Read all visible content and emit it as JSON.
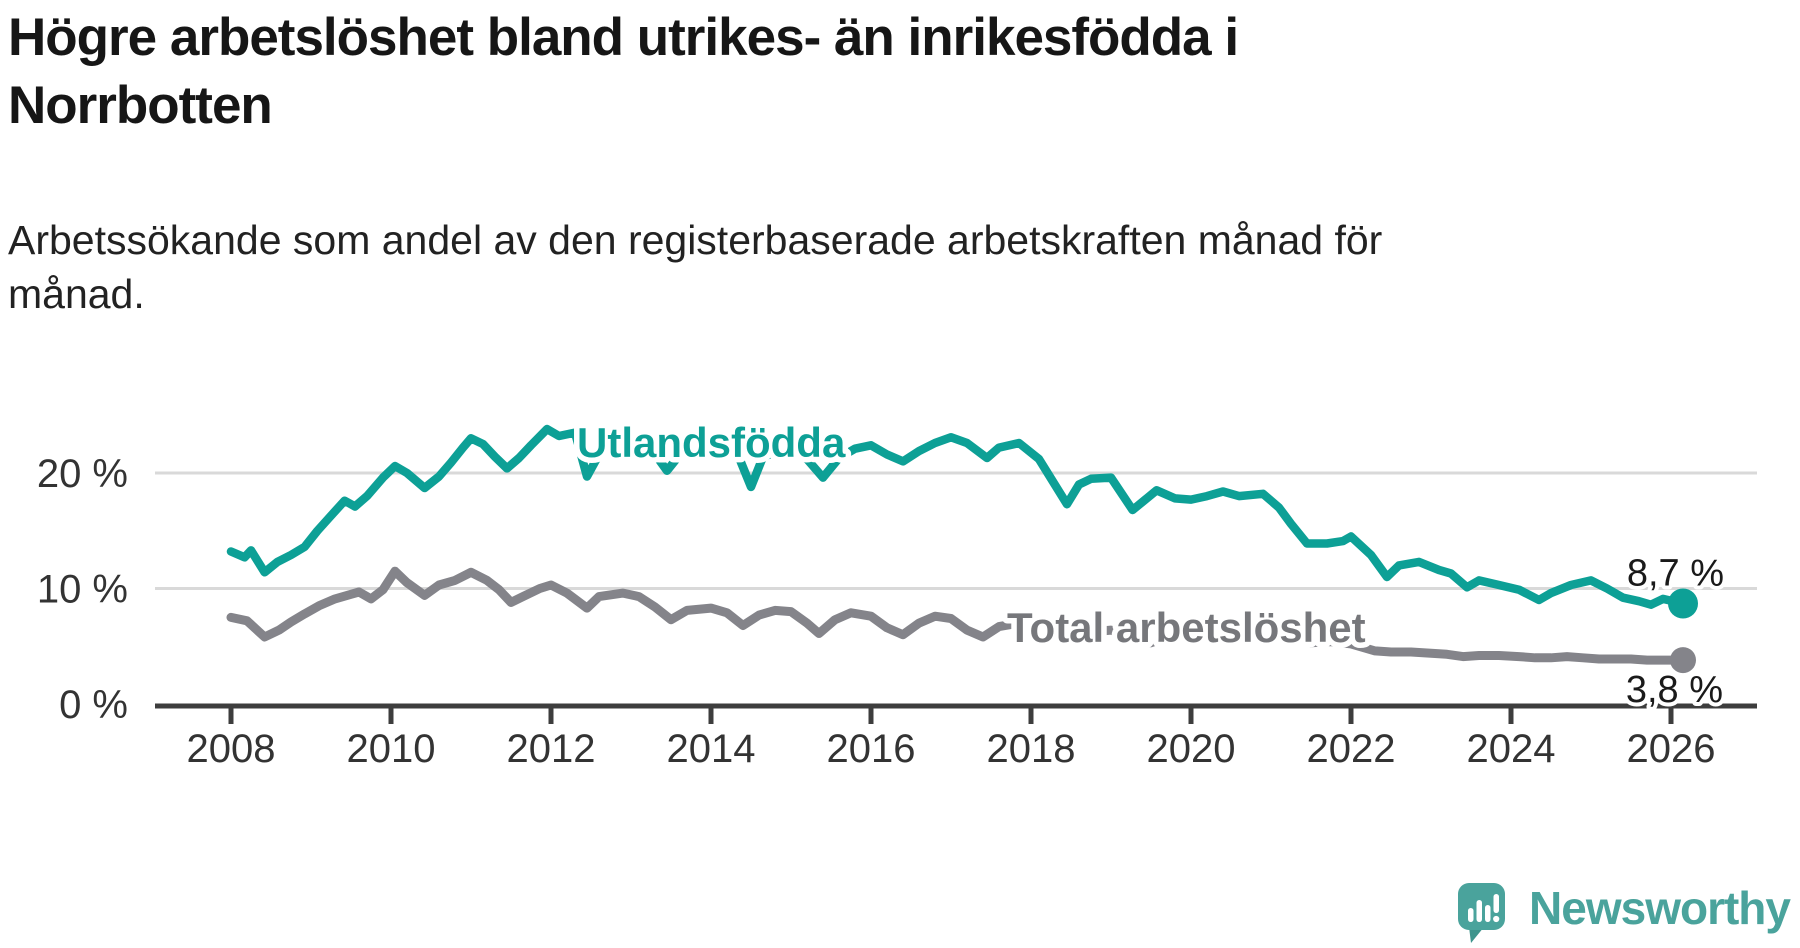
{
  "header": {
    "title": "Högre arbetslöshet bland utrikes- än inrikesfödda i Norrbotten",
    "subtitle": "Arbetssökande som andel av den registerbaserade arbetskraften månad för månad."
  },
  "footer": {
    "brand_name": "Newsworthy",
    "brand_color": "#4aa39c",
    "logo_icon": "speech-bubble-bar-chart-icon"
  },
  "colors": {
    "foreign_born_line": "#0da096",
    "total_line": "#84848a",
    "total_label": "#76777b",
    "axis": "#3d3d3d",
    "tick_text": "#333333",
    "value_text": "#1a1a1a",
    "gridline": "#d9d9d9",
    "background": "#ffffff"
  },
  "chart_data": {
    "type": "line",
    "title": "Högre arbetslöshet bland utrikes- än inrikesfödda i Norrbotten",
    "subtitle": "Arbetssökande som andel av den registerbaserade arbetskraften månad för månad.",
    "grid": "horizontal",
    "legend": "inline-labels",
    "x_axis": {
      "tick_values": [
        2008,
        2010,
        2012,
        2014,
        2016,
        2018,
        2020,
        2022,
        2024,
        2026
      ],
      "tick_labels": [
        "2008",
        "2010",
        "2012",
        "2014",
        "2016",
        "2018",
        "2020",
        "2022",
        "2024",
        "2026"
      ],
      "range": [
        2008.0,
        2026.2
      ]
    },
    "y_axis": {
      "unit": "%",
      "tick_values": [
        0,
        10,
        20
      ],
      "tick_labels": [
        "0 %",
        "10 %",
        "20 %"
      ],
      "range": [
        0,
        26
      ]
    },
    "series": [
      {
        "name": "Utlandsfödda",
        "color": "#0da096",
        "line_width": 8.5,
        "end_value": 8.7,
        "end_label": "8,7 %",
        "points": [
          [
            2008.0,
            13.2
          ],
          [
            2008.17,
            12.7
          ],
          [
            2008.25,
            13.3
          ],
          [
            2008.42,
            11.4
          ],
          [
            2008.58,
            12.3
          ],
          [
            2008.75,
            12.9
          ],
          [
            2008.92,
            13.6
          ],
          [
            2009.08,
            15.0
          ],
          [
            2009.25,
            16.3
          ],
          [
            2009.42,
            17.6
          ],
          [
            2009.55,
            17.1
          ],
          [
            2009.7,
            18.0
          ],
          [
            2009.9,
            19.6
          ],
          [
            2010.05,
            20.6
          ],
          [
            2010.2,
            20.0
          ],
          [
            2010.42,
            18.7
          ],
          [
            2010.6,
            19.7
          ],
          [
            2010.75,
            20.9
          ],
          [
            2010.9,
            22.2
          ],
          [
            2011.0,
            23.0
          ],
          [
            2011.15,
            22.5
          ],
          [
            2011.3,
            21.4
          ],
          [
            2011.45,
            20.4
          ],
          [
            2011.6,
            21.3
          ],
          [
            2011.75,
            22.4
          ],
          [
            2011.95,
            23.8
          ],
          [
            2012.1,
            23.2
          ],
          [
            2012.3,
            23.5
          ],
          [
            2012.45,
            19.7
          ],
          [
            2012.6,
            21.6
          ],
          [
            2012.8,
            22.8
          ],
          [
            2013.0,
            23.2
          ],
          [
            2013.2,
            22.6
          ],
          [
            2013.45,
            20.2
          ],
          [
            2013.6,
            21.5
          ],
          [
            2013.8,
            22.3
          ],
          [
            2014.0,
            22.5
          ],
          [
            2014.3,
            22.2
          ],
          [
            2014.5,
            18.8
          ],
          [
            2014.65,
            21.4
          ],
          [
            2014.85,
            21.9
          ],
          [
            2015.0,
            22.0
          ],
          [
            2015.2,
            21.2
          ],
          [
            2015.4,
            19.6
          ],
          [
            2015.6,
            21.3
          ],
          [
            2015.8,
            22.1
          ],
          [
            2016.0,
            22.4
          ],
          [
            2016.2,
            21.6
          ],
          [
            2016.4,
            21.0
          ],
          [
            2016.6,
            21.9
          ],
          [
            2016.8,
            22.6
          ],
          [
            2017.0,
            23.1
          ],
          [
            2017.2,
            22.6
          ],
          [
            2017.45,
            21.3
          ],
          [
            2017.6,
            22.2
          ],
          [
            2017.85,
            22.6
          ],
          [
            2018.1,
            21.2
          ],
          [
            2018.45,
            17.3
          ],
          [
            2018.6,
            19.0
          ],
          [
            2018.75,
            19.5
          ],
          [
            2019.0,
            19.6
          ],
          [
            2019.27,
            16.8
          ],
          [
            2019.57,
            18.5
          ],
          [
            2019.8,
            17.8
          ],
          [
            2020.0,
            17.7
          ],
          [
            2020.2,
            18.0
          ],
          [
            2020.4,
            18.4
          ],
          [
            2020.6,
            18.0
          ],
          [
            2020.9,
            18.2
          ],
          [
            2021.1,
            17.0
          ],
          [
            2021.25,
            15.6
          ],
          [
            2021.45,
            13.9
          ],
          [
            2021.7,
            13.9
          ],
          [
            2021.9,
            14.1
          ],
          [
            2022.0,
            14.5
          ],
          [
            2022.25,
            12.9
          ],
          [
            2022.45,
            11.0
          ],
          [
            2022.6,
            12.0
          ],
          [
            2022.85,
            12.3
          ],
          [
            2023.1,
            11.6
          ],
          [
            2023.25,
            11.3
          ],
          [
            2023.45,
            10.1
          ],
          [
            2023.6,
            10.7
          ],
          [
            2023.85,
            10.3
          ],
          [
            2024.1,
            9.9
          ],
          [
            2024.35,
            9.0
          ],
          [
            2024.5,
            9.6
          ],
          [
            2024.75,
            10.3
          ],
          [
            2025.0,
            10.7
          ],
          [
            2025.2,
            10.0
          ],
          [
            2025.4,
            9.2
          ],
          [
            2025.6,
            8.9
          ],
          [
            2025.75,
            8.6
          ],
          [
            2025.9,
            9.1
          ],
          [
            2026.15,
            8.7
          ]
        ]
      },
      {
        "name": "Total arbetslöshet",
        "color": "#84848a",
        "line_width": 9,
        "end_value": 3.8,
        "end_label": "3,8 %",
        "points": [
          [
            2008.0,
            7.5
          ],
          [
            2008.2,
            7.2
          ],
          [
            2008.42,
            5.8
          ],
          [
            2008.6,
            6.4
          ],
          [
            2008.75,
            7.1
          ],
          [
            2008.92,
            7.8
          ],
          [
            2009.1,
            8.5
          ],
          [
            2009.3,
            9.1
          ],
          [
            2009.5,
            9.5
          ],
          [
            2009.6,
            9.7
          ],
          [
            2009.75,
            9.1
          ],
          [
            2009.9,
            9.9
          ],
          [
            2010.05,
            11.5
          ],
          [
            2010.2,
            10.5
          ],
          [
            2010.42,
            9.4
          ],
          [
            2010.6,
            10.3
          ],
          [
            2010.8,
            10.7
          ],
          [
            2011.0,
            11.4
          ],
          [
            2011.2,
            10.7
          ],
          [
            2011.35,
            9.9
          ],
          [
            2011.5,
            8.8
          ],
          [
            2011.65,
            9.3
          ],
          [
            2011.86,
            10.0
          ],
          [
            2012.0,
            10.3
          ],
          [
            2012.2,
            9.6
          ],
          [
            2012.45,
            8.3
          ],
          [
            2012.6,
            9.3
          ],
          [
            2012.9,
            9.6
          ],
          [
            2013.1,
            9.3
          ],
          [
            2013.3,
            8.4
          ],
          [
            2013.5,
            7.3
          ],
          [
            2013.7,
            8.1
          ],
          [
            2014.0,
            8.3
          ],
          [
            2014.2,
            7.9
          ],
          [
            2014.4,
            6.8
          ],
          [
            2014.6,
            7.7
          ],
          [
            2014.8,
            8.1
          ],
          [
            2015.0,
            8.0
          ],
          [
            2015.2,
            7.0
          ],
          [
            2015.35,
            6.1
          ],
          [
            2015.55,
            7.3
          ],
          [
            2015.75,
            7.9
          ],
          [
            2016.0,
            7.6
          ],
          [
            2016.2,
            6.6
          ],
          [
            2016.4,
            6.0
          ],
          [
            2016.6,
            7.0
          ],
          [
            2016.8,
            7.6
          ],
          [
            2017.0,
            7.4
          ],
          [
            2017.2,
            6.4
          ],
          [
            2017.4,
            5.8
          ],
          [
            2017.6,
            6.7
          ],
          [
            2017.85,
            7.0
          ],
          [
            2018.1,
            7.0
          ],
          [
            2018.3,
            6.2
          ],
          [
            2018.5,
            5.6
          ],
          [
            2018.7,
            6.2
          ],
          [
            2019.0,
            6.4
          ],
          [
            2019.3,
            5.6
          ],
          [
            2019.5,
            5.3
          ],
          [
            2019.75,
            5.9
          ],
          [
            2020.0,
            6.1
          ],
          [
            2020.3,
            6.9
          ],
          [
            2020.5,
            6.6
          ],
          [
            2020.75,
            6.6
          ],
          [
            2021.0,
            6.5
          ],
          [
            2021.3,
            5.7
          ],
          [
            2021.5,
            5.3
          ],
          [
            2021.75,
            5.4
          ],
          [
            2022.0,
            5.2
          ],
          [
            2022.3,
            4.6
          ],
          [
            2022.5,
            4.5
          ],
          [
            2022.75,
            4.5
          ],
          [
            2023.0,
            4.4
          ],
          [
            2023.2,
            4.3
          ],
          [
            2023.4,
            4.1
          ],
          [
            2023.6,
            4.2
          ],
          [
            2023.85,
            4.2
          ],
          [
            2024.1,
            4.1
          ],
          [
            2024.3,
            4.0
          ],
          [
            2024.5,
            4.0
          ],
          [
            2024.7,
            4.1
          ],
          [
            2024.9,
            4.0
          ],
          [
            2025.1,
            3.9
          ],
          [
            2025.3,
            3.9
          ],
          [
            2025.5,
            3.9
          ],
          [
            2025.7,
            3.8
          ],
          [
            2025.9,
            3.8
          ],
          [
            2026.15,
            3.8
          ]
        ]
      }
    ]
  }
}
